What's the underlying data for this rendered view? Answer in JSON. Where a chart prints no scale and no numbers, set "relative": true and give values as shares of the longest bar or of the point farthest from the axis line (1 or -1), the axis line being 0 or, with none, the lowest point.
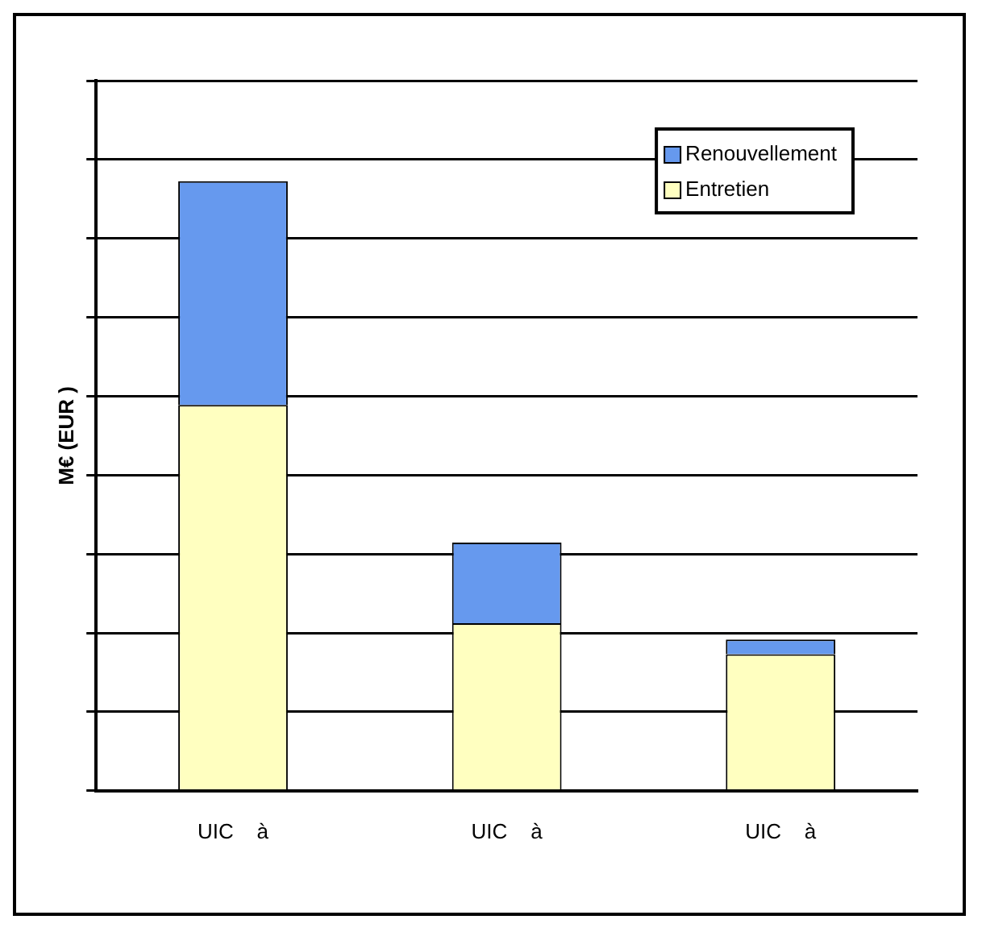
{
  "chart_data": {
    "type": "bar",
    "stacked": true,
    "relative": true,
    "ylabel": "M€ (EUR )",
    "categories": [
      "UIC    à",
      "UIC    à",
      "UIC    à"
    ],
    "series": [
      {
        "name": "Entretien",
        "color": "#ffffc0",
        "values": [
          0.633,
          0.275,
          0.224
        ]
      },
      {
        "name": "Renouvellement",
        "color": "#6699ee",
        "values": [
          0.367,
          0.132,
          0.024
        ]
      }
    ],
    "grid": "y",
    "legend": "top right"
  }
}
